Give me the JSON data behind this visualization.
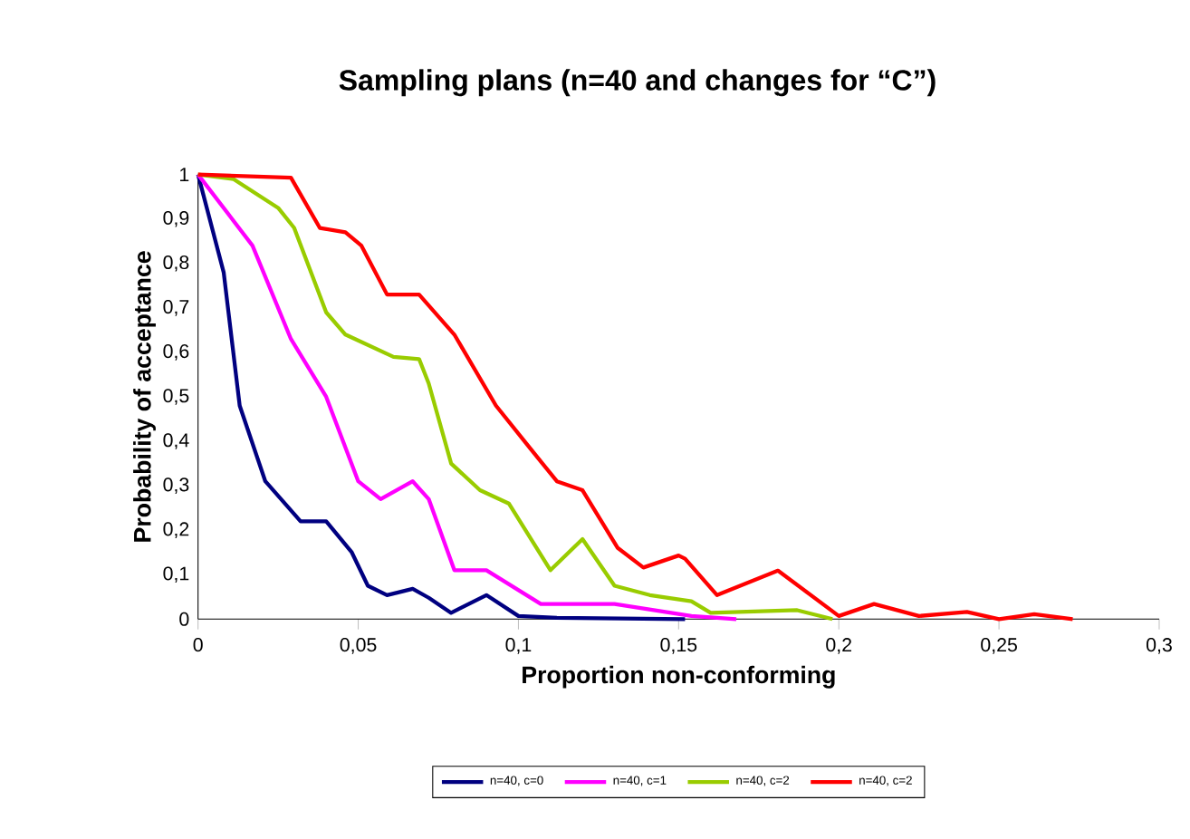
{
  "chart_data": {
    "type": "line",
    "title": "Sampling plans (n=40 and changes for “C”)",
    "xlabel": "Proportion non-conforming",
    "ylabel": "Probability of acceptance",
    "xlim": [
      0,
      0.3
    ],
    "ylim": [
      0,
      1
    ],
    "xticks": [
      0,
      {
        "value": 0.05,
        "label": "0,05"
      },
      {
        "value": 0.1,
        "label": "0,1"
      },
      {
        "value": 0.15,
        "label": "0,15"
      },
      {
        "value": 0.2,
        "label": "0,2"
      },
      {
        "value": 0.25,
        "label": "0,25"
      },
      {
        "value": 0.3,
        "label": "0,3"
      }
    ],
    "yticks": [
      0,
      {
        "value": 0.1,
        "label": "0,1"
      },
      {
        "value": 0.2,
        "label": "0,2"
      },
      {
        "value": 0.3,
        "label": "0,3"
      },
      {
        "value": 0.4,
        "label": "0,4"
      },
      {
        "value": 0.5,
        "label": "0,5"
      },
      {
        "value": 0.6,
        "label": "0,6"
      },
      {
        "value": 0.7,
        "label": "0,7"
      },
      {
        "value": 0.8,
        "label": "0,8"
      },
      {
        "value": 0.9,
        "label": "0,9"
      },
      1
    ],
    "legend": "bottom",
    "grid": false,
    "marker": "none",
    "line_style": "solid",
    "series": [
      {
        "name": "n=40, c=0",
        "color": "#000080",
        "x": [
          0,
          0.008,
          0.013,
          0.021,
          0.032,
          0.04,
          0.048,
          0.053,
          0.059,
          0.067,
          0.072,
          0.079,
          0.09,
          0.1,
          0.112,
          0.152
        ],
        "values": [
          1,
          0.78,
          0.48,
          0.31,
          0.22,
          0.22,
          0.15,
          0.075,
          0.054,
          0.068,
          0.048,
          0.014,
          0.054,
          0.007,
          0.003,
          0
        ]
      },
      {
        "name": "n=40, c=1",
        "color": "#ff00ff",
        "x": [
          0,
          0.017,
          0.029,
          0.04,
          0.05,
          0.057,
          0.067,
          0.072,
          0.08,
          0.09,
          0.107,
          0.13,
          0.154,
          0.168
        ],
        "values": [
          1,
          0.84,
          0.63,
          0.5,
          0.31,
          0.27,
          0.31,
          0.27,
          0.11,
          0.11,
          0.034,
          0.034,
          0.007,
          0
        ]
      },
      {
        "name": "n=40, c=2",
        "color": "#99cc00",
        "x": [
          0,
          0.011,
          0.025,
          0.03,
          0.04,
          0.046,
          0.061,
          0.069,
          0.072,
          0.079,
          0.088,
          0.097,
          0.11,
          0.12,
          0.13,
          0.141,
          0.154,
          0.16,
          0.187,
          0.198
        ],
        "values": [
          1,
          0.99,
          0.925,
          0.88,
          0.69,
          0.64,
          0.59,
          0.585,
          0.53,
          0.35,
          0.29,
          0.26,
          0.11,
          0.18,
          0.075,
          0.054,
          0.04,
          0.014,
          0.02,
          0
        ]
      },
      {
        "name": "n=40, c=2",
        "color": "#ff0000",
        "x": [
          0,
          0.029,
          0.038,
          0.046,
          0.051,
          0.059,
          0.069,
          0.08,
          0.093,
          0.103,
          0.112,
          0.12,
          0.131,
          0.139,
          0.15,
          0.152,
          0.162,
          0.181,
          0.2,
          0.211,
          0.225,
          0.24,
          0.25,
          0.261,
          0.273
        ],
        "values": [
          1,
          0.993,
          0.88,
          0.87,
          0.84,
          0.73,
          0.73,
          0.64,
          0.48,
          0.39,
          0.31,
          0.29,
          0.16,
          0.116,
          0.143,
          0.136,
          0.054,
          0.109,
          0.007,
          0.034,
          0.007,
          0.016,
          0,
          0.011,
          0
        ]
      }
    ]
  }
}
